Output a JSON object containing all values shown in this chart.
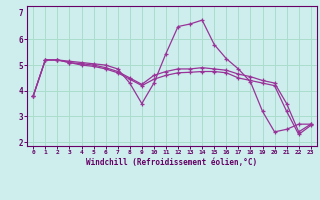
{
  "xlabel": "Windchill (Refroidissement éolien,°C)",
  "bg_color": "#cdeeed",
  "grid_color": "#aaddcc",
  "line_color": "#993399",
  "hours": [
    0,
    1,
    2,
    3,
    4,
    5,
    6,
    7,
    8,
    9,
    10,
    11,
    12,
    13,
    14,
    15,
    16,
    17,
    18,
    19,
    20,
    21,
    22,
    23
  ],
  "series1": [
    3.8,
    5.2,
    5.2,
    5.15,
    5.1,
    5.05,
    5.0,
    4.85,
    4.3,
    3.5,
    4.3,
    5.45,
    6.5,
    6.6,
    6.75,
    5.8,
    5.25,
    4.85,
    4.35,
    3.2,
    2.4,
    2.5,
    2.7,
    2.7
  ],
  "series2": [
    3.8,
    5.2,
    5.2,
    5.1,
    5.05,
    5.0,
    4.9,
    4.75,
    4.5,
    4.25,
    4.6,
    4.75,
    4.85,
    4.85,
    4.9,
    4.85,
    4.8,
    4.65,
    4.55,
    4.4,
    4.3,
    3.5,
    2.4,
    2.7
  ],
  "series3": [
    3.8,
    5.2,
    5.2,
    5.1,
    5.0,
    4.95,
    4.85,
    4.7,
    4.45,
    4.2,
    4.45,
    4.6,
    4.7,
    4.72,
    4.75,
    4.75,
    4.7,
    4.5,
    4.4,
    4.3,
    4.2,
    3.2,
    2.3,
    2.65
  ],
  "ylim": [
    1.85,
    7.3
  ],
  "xlim": [
    -0.5,
    23.5
  ],
  "yticks": [
    2,
    3,
    4,
    5,
    6
  ],
  "xticks": [
    0,
    1,
    2,
    3,
    4,
    5,
    6,
    7,
    8,
    9,
    10,
    11,
    12,
    13,
    14,
    15,
    16,
    17,
    18,
    19,
    20,
    21,
    22,
    23
  ]
}
